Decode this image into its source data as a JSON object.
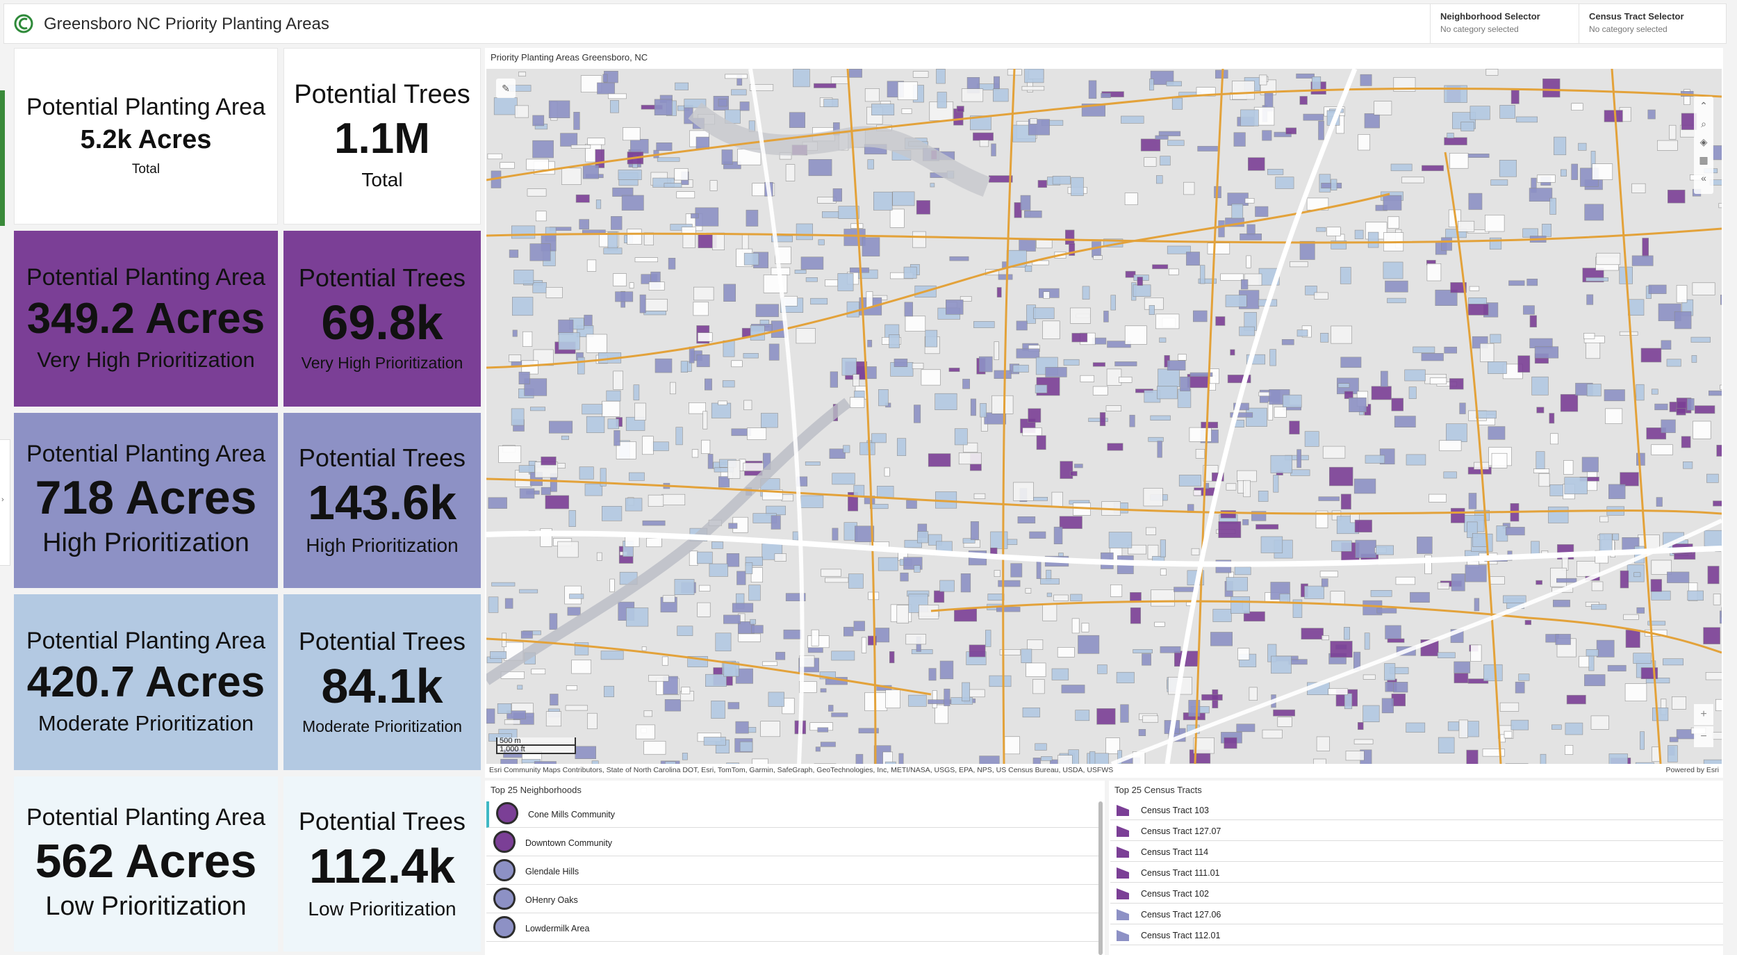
{
  "app": {
    "title": "Greensboro NC Priority Planting Areas"
  },
  "selectors": [
    {
      "label": "Neighborhood Selector",
      "value": "No category selected"
    },
    {
      "label": "Census Tract Selector",
      "value": "No category selected"
    }
  ],
  "cards": {
    "total_area": {
      "label": "Potential Planting Area",
      "value": "5.2k Acres",
      "sub": "Total"
    },
    "total_trees": {
      "label": "Potential Trees",
      "value": "1.1M",
      "sub": "Total"
    },
    "vh_area": {
      "label": "Potential Planting Area",
      "value": "349.2 Acres",
      "sub": "Very High Prioritization"
    },
    "vh_trees": {
      "label": "Potential Trees",
      "value": "69.8k",
      "sub": "Very High Prioritization"
    },
    "h_area": {
      "label": "Potential Planting Area",
      "value": "718 Acres",
      "sub": "High Prioritization"
    },
    "h_trees": {
      "label": "Potential Trees",
      "value": "143.6k",
      "sub": "High Prioritization"
    },
    "m_area": {
      "label": "Potential Planting Area",
      "value": "420.7 Acres",
      "sub": "Moderate Prioritization"
    },
    "m_trees": {
      "label": "Potential Trees",
      "value": "84.1k",
      "sub": "Moderate Prioritization"
    },
    "l_area": {
      "label": "Potential Planting Area",
      "value": "562 Acres",
      "sub": "Low Prioritization"
    },
    "l_trees": {
      "label": "Potential Trees",
      "value": "112.4k",
      "sub": "Low Prioritization"
    }
  },
  "colors": {
    "very_high": "#7b3f96",
    "high": "#8d91c5",
    "moderate": "#b3c9e2",
    "low": "#eef6fa",
    "roads": "#e3a23a",
    "brand_green": "#3a8a3a"
  },
  "map": {
    "title": "Priority Planting Areas Greensboro, NC",
    "scale_m": "500 m",
    "scale_ft": "1,000 ft",
    "attribution": "Esri Community Maps Contributors, State of North Carolina DOT, Esri, TomTom, Garmin, SafeGraph, GeoTechnologies, Inc, METI/NASA, USGS, EPA, NPS, US Census Bureau, USDA, USFWS",
    "powered_by": "Powered by Esri",
    "tools": [
      "expand-icon",
      "search-icon",
      "layers-icon",
      "basemap-icon",
      "collapse-icon"
    ]
  },
  "neighborhoods": {
    "title": "Top 25 Neighborhoods",
    "items": [
      {
        "name": "Cone Mills Community",
        "level": "very_high"
      },
      {
        "name": "Downtown Community",
        "level": "very_high"
      },
      {
        "name": "Glendale Hills",
        "level": "high"
      },
      {
        "name": "OHenry Oaks",
        "level": "high"
      },
      {
        "name": "Lowdermilk Area",
        "level": "high"
      }
    ]
  },
  "census_tracts": {
    "title": "Top 25 Census Tracts",
    "items": [
      {
        "name": "Census Tract 103",
        "level": "very_high"
      },
      {
        "name": "Census Tract 127.07",
        "level": "very_high"
      },
      {
        "name": "Census Tract 114",
        "level": "very_high"
      },
      {
        "name": "Census Tract 111.01",
        "level": "very_high"
      },
      {
        "name": "Census Tract 102",
        "level": "very_high"
      },
      {
        "name": "Census Tract 127.06",
        "level": "high"
      },
      {
        "name": "Census Tract 112.01",
        "level": "high"
      }
    ]
  }
}
